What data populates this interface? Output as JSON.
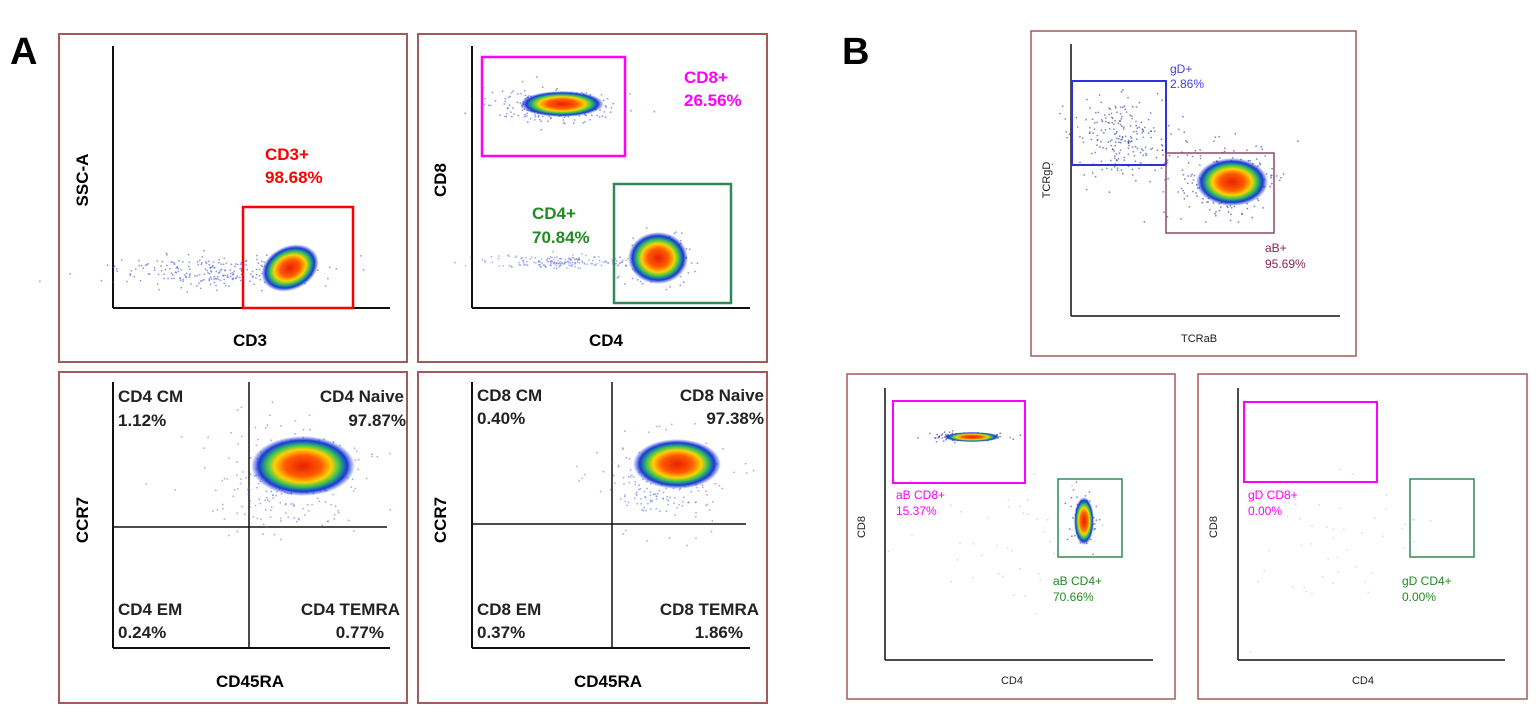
{
  "panel_letters": {
    "a": "A",
    "b": "B"
  },
  "colors": {
    "frame": "#a35a5a",
    "cd3": "#ff0000",
    "cd8": "#ff00ff",
    "cd4": "#228b22",
    "gd": "#4040e8",
    "ab": "#8b2252",
    "axis": "#111111",
    "quadrant": "#111111"
  },
  "chart_data": [
    {
      "id": "a1",
      "type": "scatter",
      "subtype": "flow-cytometry-density",
      "xlabel": "CD3",
      "ylabel": "SSC-A",
      "gates": [
        {
          "name": "CD3+",
          "percent_label": "98.68%",
          "percent": 98.68
        }
      ]
    },
    {
      "id": "a2",
      "type": "scatter",
      "subtype": "flow-cytometry-density",
      "xlabel": "CD4",
      "ylabel": "CD8",
      "gates": [
        {
          "name": "CD8+",
          "percent_label": "26.56%",
          "percent": 26.56
        },
        {
          "name": "CD4+",
          "percent_label": "70.84%",
          "percent": 70.84
        }
      ]
    },
    {
      "id": "a3",
      "type": "scatter",
      "subtype": "flow-cytometry-quadrant",
      "xlabel": "CD45RA",
      "ylabel": "CCR7",
      "quadrants": [
        {
          "name": "CD4 CM",
          "percent_label": "1.12%",
          "percent": 1.12,
          "position": "top-left"
        },
        {
          "name": "CD4 Naive",
          "percent_label": "97.87%",
          "percent": 97.87,
          "position": "top-right"
        },
        {
          "name": "CD4 EM",
          "percent_label": "0.24%",
          "percent": 0.24,
          "position": "bottom-left"
        },
        {
          "name": "CD4 TEMRA",
          "percent_label": "0.77%",
          "percent": 0.77,
          "position": "bottom-right"
        }
      ]
    },
    {
      "id": "a4",
      "type": "scatter",
      "subtype": "flow-cytometry-quadrant",
      "xlabel": "CD45RA",
      "ylabel": "CCR7",
      "quadrants": [
        {
          "name": "CD8 CM",
          "percent_label": "0.40%",
          "percent": 0.4,
          "position": "top-left"
        },
        {
          "name": "CD8 Naive",
          "percent_label": "97.38%",
          "percent": 97.38,
          "position": "top-right"
        },
        {
          "name": "CD8 EM",
          "percent_label": "0.37%",
          "percent": 0.37,
          "position": "bottom-left"
        },
        {
          "name": "CD8 TEMRA",
          "percent_label": "1.86%",
          "percent": 1.86,
          "position": "bottom-right"
        }
      ]
    },
    {
      "id": "b1",
      "type": "scatter",
      "subtype": "flow-cytometry-density",
      "xlabel": "TCRaB",
      "ylabel": "TCRgD",
      "gates": [
        {
          "name": "gD+",
          "percent_label": "2.86%",
          "percent": 2.86
        },
        {
          "name": "aB+",
          "percent_label": "95.69%",
          "percent": 95.69
        }
      ]
    },
    {
      "id": "b2",
      "type": "scatter",
      "subtype": "flow-cytometry-density",
      "xlabel": "CD4",
      "ylabel": "CD8",
      "gates": [
        {
          "name": "aB CD8+",
          "percent_label": "15.37%",
          "percent": 15.37
        },
        {
          "name": "aB CD4+",
          "percent_label": "70.66%",
          "percent": 70.66
        }
      ]
    },
    {
      "id": "b3",
      "type": "scatter",
      "subtype": "flow-cytometry-density",
      "xlabel": "CD4",
      "ylabel": "CD8",
      "gates": [
        {
          "name": "gD CD8+",
          "percent_label": "0.00%",
          "percent": 0.0
        },
        {
          "name": "gD CD4+",
          "percent_label": "0.00%",
          "percent": 0.0
        }
      ]
    }
  ]
}
